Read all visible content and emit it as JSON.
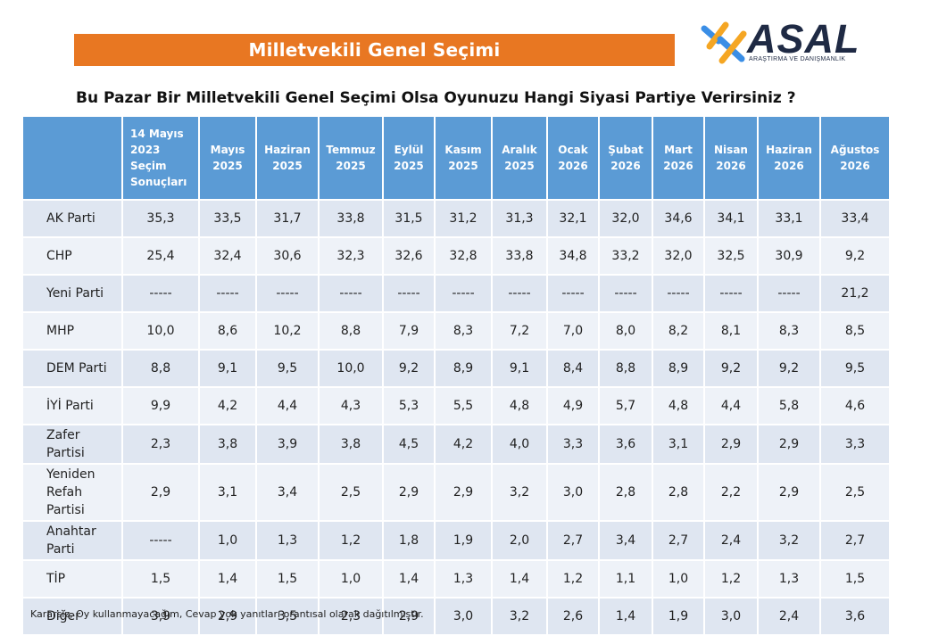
{
  "banner": "Milletvekili Genel Seçimi",
  "logo": {
    "name": "ASAL",
    "subtitle": "ARAŞTIRMA VE DANIŞMANLIK",
    "colors": [
      "#f5a623",
      "#3a8ee6",
      "#1f2a44"
    ]
  },
  "question": "Bu Pazar Bir Milletvekili Genel Seçimi Olsa Oyunuzu Hangi Siyasi Partiye Verirsiniz ?",
  "footnote": "Kararsız, Oy kullanmayacağım, Cevap yok yanıtları orantısal olarak dağıtılmıştır.",
  "colors": {
    "banner": "#e87722",
    "header": "#5b9bd5",
    "row_odd": "#dfe6f1",
    "row_even": "#eef2f8"
  },
  "chart_data": {
    "type": "table",
    "columns": [
      [
        "14 Mayıs",
        "2023",
        "Seçim",
        "Sonuçları"
      ],
      [
        "Mayıs",
        "2025"
      ],
      [
        "Haziran",
        "2025"
      ],
      [
        "Temmuz",
        "2025"
      ],
      [
        "Eylül",
        "2025"
      ],
      [
        "Kasım",
        "2025"
      ],
      [
        "Aralık",
        "2025"
      ],
      [
        "Ocak",
        "2026"
      ],
      [
        "Şubat",
        "2026"
      ],
      [
        "Mart",
        "2026"
      ],
      [
        "Nisan",
        "2026"
      ],
      [
        "Haziran",
        "2026"
      ],
      [
        "Ağustos",
        "2026"
      ]
    ],
    "rows": [
      {
        "party": [
          "AK Parti"
        ],
        "values": [
          "35,3",
          "33,5",
          "31,7",
          "33,8",
          "31,5",
          "31,2",
          "31,3",
          "32,1",
          "32,0",
          "34,6",
          "34,1",
          "33,1",
          "33,4"
        ]
      },
      {
        "party": [
          "CHP"
        ],
        "values": [
          "25,4",
          "32,4",
          "30,6",
          "32,3",
          "32,6",
          "32,8",
          "33,8",
          "34,8",
          "33,2",
          "32,0",
          "32,5",
          "30,9",
          "9,2"
        ]
      },
      {
        "party": [
          "Yeni Parti"
        ],
        "values": [
          "-----",
          "-----",
          "-----",
          "-----",
          "-----",
          "-----",
          "-----",
          "-----",
          "-----",
          "-----",
          "-----",
          "-----",
          "21,2"
        ]
      },
      {
        "party": [
          "MHP"
        ],
        "values": [
          "10,0",
          "8,6",
          "10,2",
          "8,8",
          "7,9",
          "8,3",
          "7,2",
          "7,0",
          "8,0",
          "8,2",
          "8,1",
          "8,3",
          "8,5"
        ]
      },
      {
        "party": [
          "DEM Parti"
        ],
        "values": [
          "8,8",
          "9,1",
          "9,5",
          "10,0",
          "9,2",
          "8,9",
          "9,1",
          "8,4",
          "8,8",
          "8,9",
          "9,2",
          "9,2",
          "9,5"
        ]
      },
      {
        "party": [
          "İYİ Parti"
        ],
        "values": [
          "9,9",
          "4,2",
          "4,4",
          "4,3",
          "5,3",
          "5,5",
          "4,8",
          "4,9",
          "5,7",
          "4,8",
          "4,4",
          "5,8",
          "4,6"
        ]
      },
      {
        "party": [
          "Zafer Partisi"
        ],
        "values": [
          "2,3",
          "3,8",
          "3,9",
          "3,8",
          "4,5",
          "4,2",
          "4,0",
          "3,3",
          "3,6",
          "3,1",
          "2,9",
          "2,9",
          "3,3"
        ]
      },
      {
        "party": [
          "Yeniden",
          "Refah Partisi"
        ],
        "values": [
          "2,9",
          "3,1",
          "3,4",
          "2,5",
          "2,9",
          "2,9",
          "3,2",
          "3,0",
          "2,8",
          "2,8",
          "2,2",
          "2,9",
          "2,5"
        ]
      },
      {
        "party": [
          "Anahtar Parti"
        ],
        "values": [
          "-----",
          "1,0",
          "1,3",
          "1,2",
          "1,8",
          "1,9",
          "2,0",
          "2,7",
          "3,4",
          "2,7",
          "2,4",
          "3,2",
          "2,7"
        ]
      },
      {
        "party": [
          "TİP"
        ],
        "values": [
          "1,5",
          "1,4",
          "1,5",
          "1,0",
          "1,4",
          "1,3",
          "1,4",
          "1,2",
          "1,1",
          "1,0",
          "1,2",
          "1,3",
          "1,5"
        ]
      },
      {
        "party": [
          "Diğer"
        ],
        "values": [
          "3,9",
          "2,9",
          "3,5",
          "2,3",
          "2,9",
          "3,0",
          "3,2",
          "2,6",
          "1,4",
          "1,9",
          "3,0",
          "2,4",
          "3,6"
        ]
      }
    ]
  }
}
